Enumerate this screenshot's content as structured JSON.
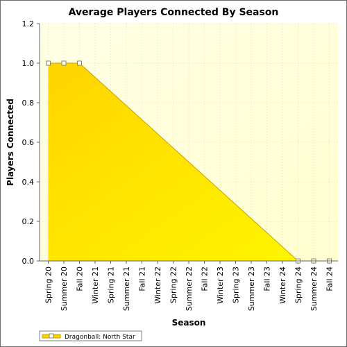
{
  "chart_data": {
    "type": "area",
    "title": "Average Players Connected By Season",
    "xlabel": "Season",
    "ylabel": "Players Connected",
    "categories": [
      "Spring 20",
      "Summer 20",
      "Fall 20",
      "Winter 21",
      "Spring 21",
      "Summer 21",
      "Fall 21",
      "Winter 22",
      "Spring 22",
      "Summer 22",
      "Fall 22",
      "Winter 23",
      "Spring 23",
      "Summer 23",
      "Fall 23",
      "Winter 24",
      "Spring 24",
      "Summer 24",
      "Fall 24"
    ],
    "y_ticks": [
      "0.0",
      "0.2",
      "0.4",
      "0.6",
      "0.8",
      "1.0",
      "1.2"
    ],
    "ylim": [
      0,
      1.2
    ],
    "grid": true,
    "legend_position": "bottom-left",
    "series": [
      {
        "name": "Dragonball: North Star",
        "values": [
          1.0,
          1.0,
          1.0,
          null,
          null,
          null,
          null,
          null,
          null,
          null,
          null,
          null,
          null,
          null,
          null,
          null,
          0.0,
          0.0,
          0.0
        ],
        "markers": [
          true,
          true,
          true,
          false,
          false,
          false,
          false,
          false,
          false,
          false,
          false,
          false,
          false,
          false,
          false,
          false,
          true,
          true,
          true
        ]
      }
    ],
    "colors": {
      "plot_background": "#ffffe6",
      "fill_top": "#ffd400",
      "fill_bottom": "#fff200",
      "line": "#c8a000",
      "marker_fill": "#ffffff",
      "marker_stroke": "#8a8a60",
      "grid": "#c8c8a0"
    }
  }
}
